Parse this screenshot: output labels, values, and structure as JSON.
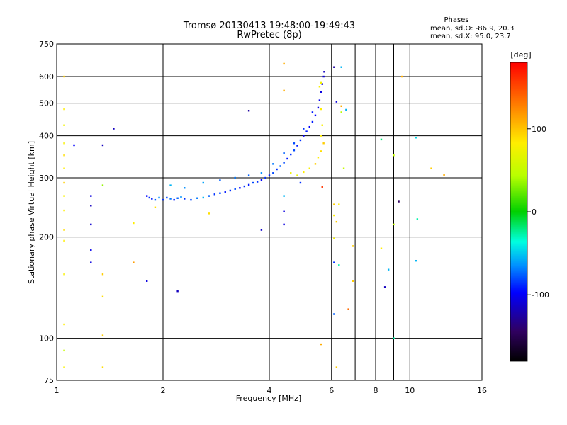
{
  "header": {
    "title_line1": "Tromsø 20130413 19:48:00-19:49:43",
    "title_line2": "RwPretec (8p)",
    "info_title": "Phases",
    "info_line1": "mean, sd,O: -86.9, 20.3",
    "info_line2": "mean, sd,X:  95.0, 23.7"
  },
  "chart_data": {
    "type": "scatter",
    "title": "Tromsø 20130413 19:48:00-19:49:43",
    "subtitle": "RwPretec (8p)",
    "xlabel": "Frequency [MHz]",
    "ylabel": "Stationary phase Virtual Height [km]",
    "x_scale": "log",
    "y_scale": "log",
    "xlim": [
      1,
      16
    ],
    "ylim": [
      75,
      750
    ],
    "x_ticks": [
      1,
      2,
      4,
      6,
      8,
      10,
      16
    ],
    "x_minor": [
      7,
      9
    ],
    "y_ticks": [
      75,
      100,
      200,
      300,
      400,
      500,
      600,
      750
    ],
    "grid": true,
    "colorbar": {
      "label": "[deg]",
      "range": [
        -180,
        180
      ],
      "ticks": [
        100,
        0,
        -100
      ]
    },
    "series": [
      {
        "points": [
          [
            1.8,
            265,
            -100
          ],
          [
            1.83,
            262,
            -90
          ],
          [
            1.86,
            260,
            -95
          ],
          [
            1.9,
            258,
            -80
          ],
          [
            1.95,
            262,
            -70
          ],
          [
            2.0,
            258,
            -90
          ],
          [
            2.05,
            262,
            -85
          ],
          [
            2.1,
            260,
            -75
          ],
          [
            2.15,
            258,
            -95
          ],
          [
            2.2,
            261,
            -80
          ],
          [
            2.25,
            263,
            -70
          ],
          [
            2.3,
            260,
            -90
          ],
          [
            2.4,
            258,
            -85
          ],
          [
            2.5,
            261,
            -75
          ],
          [
            2.6,
            262,
            -60
          ],
          [
            2.7,
            265,
            -80
          ],
          [
            2.8,
            268,
            -90
          ],
          [
            2.9,
            270,
            -85
          ],
          [
            3.0,
            272,
            -95
          ],
          [
            3.1,
            275,
            -90
          ],
          [
            3.2,
            278,
            -85
          ],
          [
            3.3,
            280,
            -100
          ],
          [
            3.4,
            283,
            -90
          ],
          [
            3.5,
            286,
            -95
          ],
          [
            3.6,
            290,
            -85
          ],
          [
            3.7,
            292,
            -90
          ],
          [
            3.8,
            296,
            -100
          ],
          [
            3.9,
            300,
            -90
          ],
          [
            4.0,
            305,
            -95
          ],
          [
            4.1,
            310,
            -85
          ],
          [
            4.2,
            318,
            -90
          ],
          [
            4.3,
            325,
            -80
          ],
          [
            4.4,
            333,
            -85
          ],
          [
            4.5,
            342,
            -95
          ],
          [
            4.6,
            352,
            -90
          ],
          [
            4.7,
            362,
            -85
          ],
          [
            4.8,
            374,
            -95
          ],
          [
            4.9,
            388,
            -90
          ],
          [
            5.0,
            400,
            -100
          ],
          [
            5.1,
            412,
            -95
          ],
          [
            5.2,
            425,
            -100
          ],
          [
            5.3,
            440,
            -95
          ],
          [
            5.4,
            460,
            -100
          ],
          [
            5.5,
            485,
            -110
          ],
          [
            5.55,
            510,
            -105
          ],
          [
            5.6,
            540,
            -110
          ],
          [
            5.65,
            570,
            -115
          ],
          [
            5.7,
            600,
            -115
          ],
          [
            5.72,
            620,
            -120
          ],
          [
            2.1,
            285,
            -60
          ],
          [
            2.3,
            280,
            -70
          ],
          [
            2.6,
            290,
            -65
          ],
          [
            2.9,
            295,
            -80
          ],
          [
            3.2,
            300,
            -75
          ],
          [
            3.5,
            305,
            -80
          ],
          [
            3.8,
            310,
            -70
          ],
          [
            4.1,
            330,
            -75
          ],
          [
            4.4,
            355,
            -80
          ],
          [
            4.7,
            380,
            -85
          ],
          [
            5.0,
            420,
            -90
          ],
          [
            5.3,
            470,
            -95
          ],
          [
            4.6,
            310,
            90
          ],
          [
            4.8,
            305,
            85
          ],
          [
            5.0,
            312,
            100
          ],
          [
            5.2,
            320,
            95
          ],
          [
            5.4,
            330,
            110
          ],
          [
            5.5,
            345,
            100
          ],
          [
            5.6,
            360,
            105
          ],
          [
            5.7,
            380,
            110
          ],
          [
            5.6,
            400,
            100
          ],
          [
            5.65,
            430,
            95
          ],
          [
            5.6,
            480,
            100
          ],
          [
            5.55,
            560,
            95
          ],
          [
            5.6,
            575,
            90
          ],
          [
            1.05,
            600,
            110
          ],
          [
            1.05,
            480,
            100
          ],
          [
            1.05,
            430,
            90
          ],
          [
            1.05,
            380,
            95
          ],
          [
            1.05,
            350,
            105
          ],
          [
            1.05,
            320,
            100
          ],
          [
            1.05,
            290,
            110
          ],
          [
            1.05,
            265,
            95
          ],
          [
            1.05,
            240,
            100
          ],
          [
            1.05,
            210,
            105
          ],
          [
            1.05,
            195,
            100
          ],
          [
            1.05,
            155,
            95
          ],
          [
            1.05,
            110,
            100
          ],
          [
            1.05,
            82,
            95
          ],
          [
            1.05,
            92,
            60
          ],
          [
            1.12,
            375,
            -100
          ],
          [
            1.25,
            265,
            -110
          ],
          [
            1.25,
            248,
            -120
          ],
          [
            1.25,
            218,
            -115
          ],
          [
            1.25,
            183,
            -105
          ],
          [
            1.25,
            168,
            -110
          ],
          [
            1.35,
            375,
            -120
          ],
          [
            1.35,
            285,
            40
          ],
          [
            1.35,
            155,
            110
          ],
          [
            1.35,
            133,
            105
          ],
          [
            1.35,
            102,
            110
          ],
          [
            1.35,
            82,
            105
          ],
          [
            1.45,
            420,
            -120
          ],
          [
            1.65,
            220,
            100
          ],
          [
            1.65,
            168,
            125
          ],
          [
            1.8,
            148,
            -110
          ],
          [
            1.9,
            245,
            105
          ],
          [
            2.2,
            138,
            -120
          ],
          [
            2.7,
            235,
            105
          ],
          [
            3.5,
            475,
            -130
          ],
          [
            3.8,
            210,
            -115
          ],
          [
            4.4,
            655,
            120
          ],
          [
            4.4,
            545,
            120
          ],
          [
            4.4,
            265,
            -60
          ],
          [
            4.4,
            238,
            -110
          ],
          [
            4.4,
            218,
            -110
          ],
          [
            4.9,
            290,
            -90
          ],
          [
            5.6,
            96,
            120
          ],
          [
            5.65,
            282,
            160
          ],
          [
            6.1,
            640,
            -130
          ],
          [
            6.4,
            640,
            -60
          ],
          [
            6.2,
            505,
            -110
          ],
          [
            6.4,
            490,
            120
          ],
          [
            6.4,
            470,
            50
          ],
          [
            6.6,
            478,
            -60
          ],
          [
            6.1,
            250,
            110
          ],
          [
            6.1,
            232,
            100
          ],
          [
            6.2,
            222,
            110
          ],
          [
            6.3,
            250,
            100
          ],
          [
            6.1,
            198,
            90
          ],
          [
            6.1,
            168,
            -90
          ],
          [
            6.3,
            165,
            -30
          ],
          [
            6.1,
            118,
            -80
          ],
          [
            6.2,
            82,
            110
          ],
          [
            6.5,
            320,
            60
          ],
          [
            6.7,
            122,
            140
          ],
          [
            6.9,
            188,
            110
          ],
          [
            6.9,
            148,
            110
          ],
          [
            8.3,
            390,
            -20
          ],
          [
            8.3,
            185,
            100
          ],
          [
            8.5,
            142,
            -120
          ],
          [
            8.7,
            160,
            -60
          ],
          [
            9.0,
            350,
            60
          ],
          [
            9.0,
            218,
            60
          ],
          [
            9.0,
            100,
            -30
          ],
          [
            9.3,
            255,
            -150
          ],
          [
            9.5,
            600,
            120
          ],
          [
            10.4,
            395,
            -50
          ],
          [
            10.4,
            170,
            -60
          ],
          [
            10.5,
            226,
            -30
          ],
          [
            11.5,
            320,
            110
          ],
          [
            12.5,
            306,
            120
          ]
        ]
      }
    ]
  }
}
